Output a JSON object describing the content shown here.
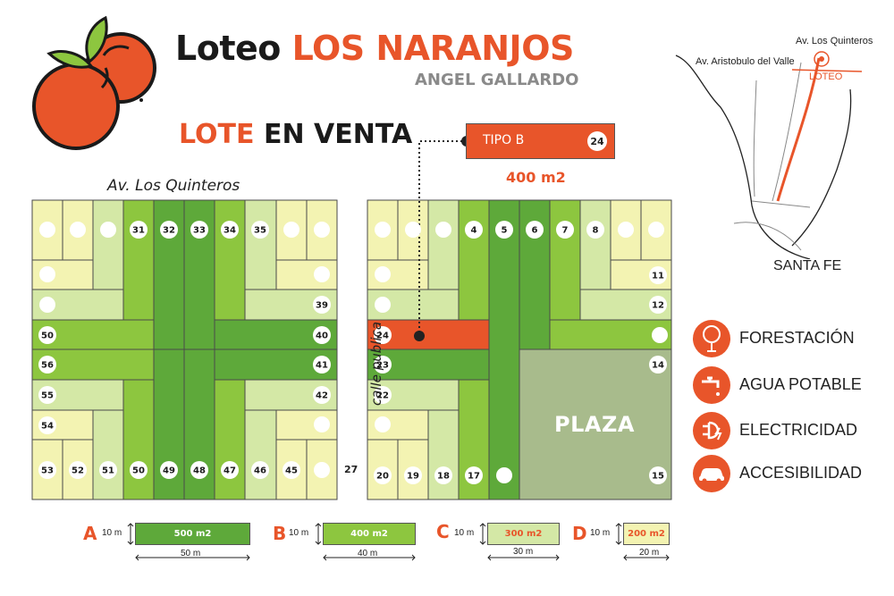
{
  "header": {
    "title_prefix": "Loteo",
    "title_main": "LOS NARANJOS",
    "subtitle": "ANGEL GALLARDO",
    "sale_accent": "LOTE",
    "sale_rest": "EN VENTA"
  },
  "callout": {
    "type_label": "TIPO B",
    "lot_number": "24",
    "area": "400 m2"
  },
  "streets": {
    "top": "Av. Los Quinteros",
    "side": "calle publica"
  },
  "plaza_label": "PLAZA",
  "stray_lot_number": "27",
  "lots": {
    "top_row_left": [
      "31",
      "32",
      "33",
      "34",
      "35"
    ],
    "right_col_left": [
      "39",
      "40",
      "41",
      "42"
    ],
    "left_col_left": [
      "50",
      "56",
      "55",
      "54"
    ],
    "bottom_row_left": [
      "53",
      "52",
      "51",
      "50",
      "49",
      "48",
      "47",
      "46",
      "45"
    ],
    "top_row_right": [
      "4",
      "5",
      "6",
      "7",
      "8"
    ],
    "right_col_right": [
      "11",
      "12",
      "14",
      "15"
    ],
    "left_col_right": [
      "24",
      "23",
      "22"
    ],
    "bottom_row_right": [
      "20",
      "19",
      "18",
      "17"
    ]
  },
  "location_map": {
    "road_label_1": "Av. Los Quinteros",
    "road_label_2": "Av. Aristobulo del Valle",
    "lot_label": "LOTEO",
    "city": "SANTA FE"
  },
  "features": [
    {
      "label": "FORESTACIÓN",
      "icon": "tree-icon"
    },
    {
      "label": "AGUA POTABLE",
      "icon": "faucet-icon"
    },
    {
      "label": "ELECTRICIDAD",
      "icon": "plug-icon"
    },
    {
      "label": "ACCESIBILIDAD",
      "icon": "car-icon"
    }
  ],
  "legend": [
    {
      "letter": "A",
      "height": "10 m",
      "area": "500 m2",
      "width": "50 m",
      "color": "#5ea93a"
    },
    {
      "letter": "B",
      "height": "10 m",
      "area": "400 m2",
      "width": "40 m",
      "color": "#8dc63f"
    },
    {
      "letter": "C",
      "height": "10 m",
      "area": "300 m2",
      "width": "30 m",
      "color": "#d4e8a6"
    },
    {
      "letter": "D",
      "height": "10 m",
      "area": "200 m2",
      "width": "20 m",
      "color": "#f3f3b2"
    }
  ],
  "colors": {
    "accent": "#e8552a",
    "lot_a": "#5ea93a",
    "lot_b": "#8dc63f",
    "lot_c": "#d4e8a6",
    "lot_d": "#f3f3b2",
    "plaza": "#a8bb8c"
  }
}
